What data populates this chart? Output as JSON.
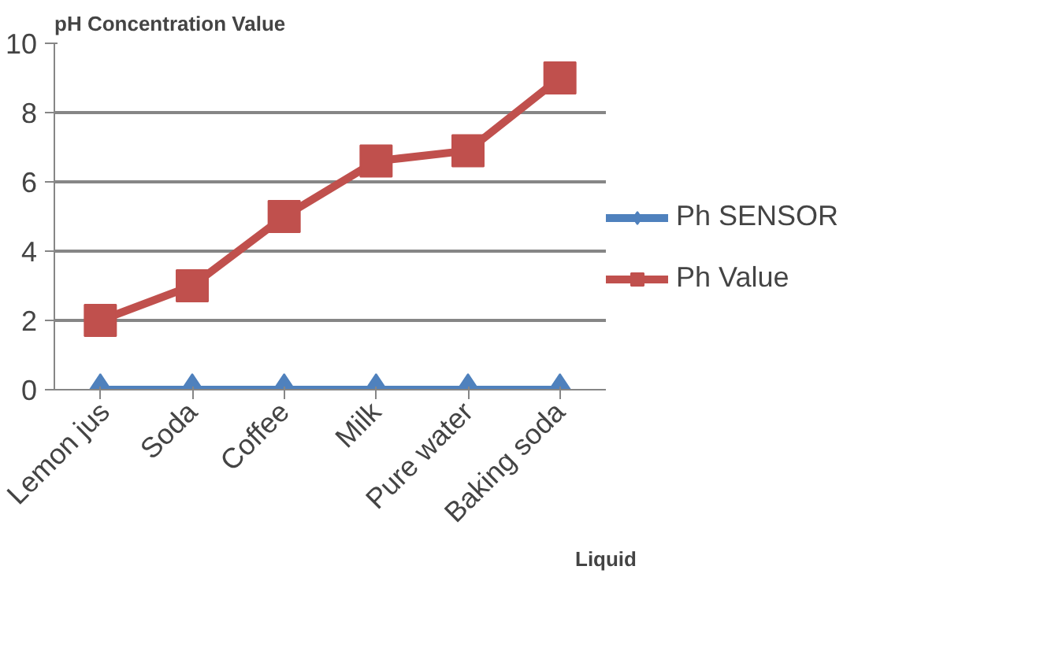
{
  "chart_data": {
    "type": "line",
    "title": "pH Concentration Value",
    "xlabel": "Liquid",
    "categories": [
      "Lemon jus",
      "Soda",
      "Coffee",
      "Milk",
      "Pure water",
      "Baking soda"
    ],
    "series": [
      {
        "name": "Ph SENSOR",
        "color": "#4f81bd",
        "marker": "diamond",
        "values": [
          0,
          0,
          0,
          0,
          0,
          0
        ]
      },
      {
        "name": "Ph Value",
        "color": "#c0504d",
        "marker": "square",
        "values": [
          2,
          3,
          5,
          6.6,
          6.9,
          9
        ]
      }
    ],
    "ylim": [
      0,
      10
    ],
    "yticks": [
      0,
      2,
      4,
      6,
      8,
      10
    ],
    "grid": "y",
    "legend": "right",
    "line_style": "solid"
  }
}
